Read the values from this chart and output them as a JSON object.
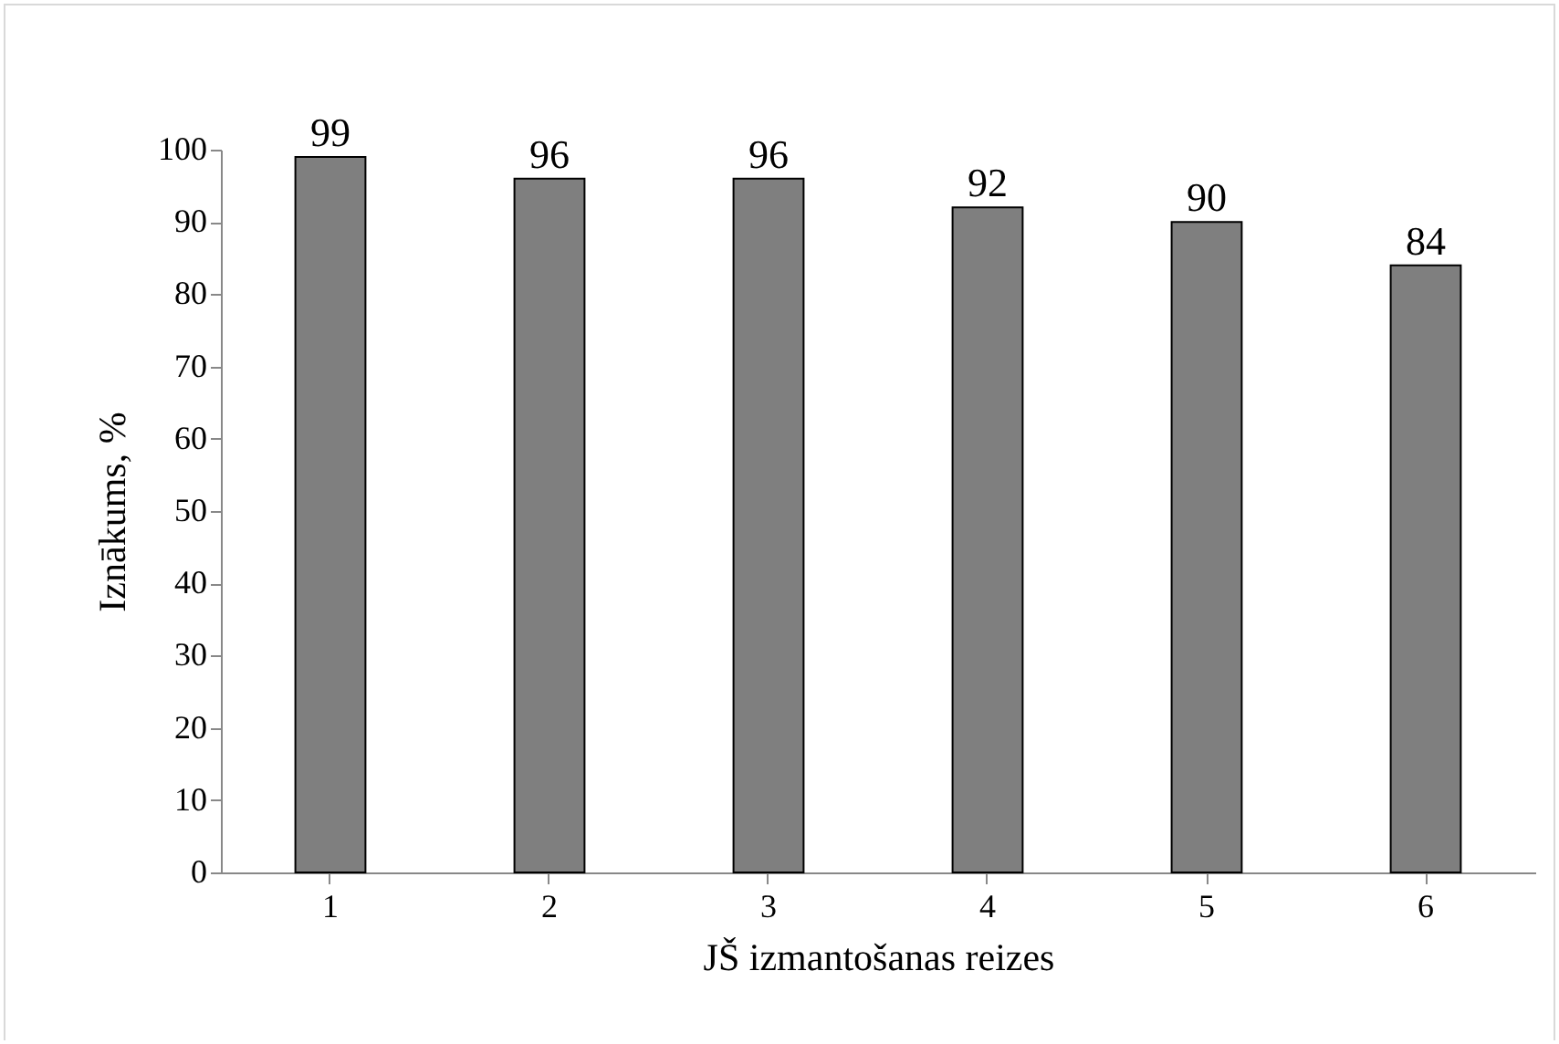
{
  "chart_data": {
    "type": "bar",
    "xlabel": "JŠ izmantošanas reizes",
    "ylabel": "Iznākums, %",
    "categories": [
      "1",
      "2",
      "3",
      "4",
      "5",
      "6"
    ],
    "values": [
      99,
      96,
      96,
      92,
      90,
      84
    ],
    "color": "#7f7f7f",
    "ylim": [
      0,
      100
    ],
    "yticks": [
      0,
      10,
      20,
      30,
      40,
      50,
      60,
      70,
      80,
      90,
      100
    ],
    "data_labels": true,
    "grid": false
  }
}
